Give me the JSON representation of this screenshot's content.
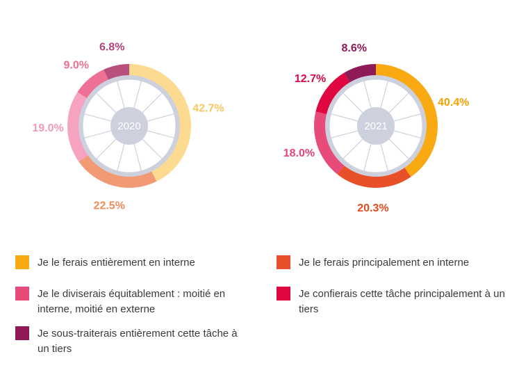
{
  "chart_data": [
    {
      "type": "pie",
      "title": "2020",
      "categories": [
        "Je le ferais entièrement en interne",
        "Je le ferais principalement en interne",
        "Je le diviserais équitablement : moitié en interne, moitié en externe",
        "Je confierais cette tâche principalement à un tiers",
        "Je sous-traiterais entièrement cette tâche à un tiers"
      ],
      "values": [
        42.7,
        22.5,
        19.0,
        9.0,
        6.8
      ],
      "labels": [
        "42.7%",
        "22.5%",
        "19.0%",
        "9.0%",
        "6.8%"
      ],
      "colors": [
        "#FCDB90",
        "#F29A73",
        "#F5A3C0",
        "#EE7094",
        "#B8507D"
      ]
    },
    {
      "type": "pie",
      "title": "2021",
      "categories": [
        "Je le ferais entièrement en interne",
        "Je le ferais principalement en interne",
        "Je le diviserais équitablement : moitié en interne, moitié en externe",
        "Je confierais cette tâche principalement à un tiers",
        "Je sous-traiterais entièrement cette tâche à un tiers"
      ],
      "values": [
        40.4,
        20.3,
        18.0,
        12.7,
        8.6
      ],
      "labels": [
        "40.4%",
        "20.3%",
        "18.0%",
        "12.7%",
        "8.6%"
      ],
      "colors": [
        "#F9A912",
        "#E8502A",
        "#E64B7A",
        "#E0063F",
        "#8E1A58"
      ]
    }
  ],
  "legend": [
    {
      "label": "Je le ferais entièrement en interne",
      "color": "#F9A912"
    },
    {
      "label": "Je le ferais principalement en interne",
      "color": "#E8502A"
    },
    {
      "label": "Je le diviserais équitablement : moitié en interne, moitié en externe",
      "color": "#E64B7A"
    },
    {
      "label": "Je confierais cette tâche principalement à un tiers",
      "color": "#E0063F"
    },
    {
      "label": "Je sous-traiterais entièrement cette tâche à un tiers",
      "color": "#8E1A58"
    }
  ],
  "label_colors": {
    "2020": [
      "#F7C862",
      "#F08A58",
      "#F29BB6",
      "#EC6F92",
      "#B0457A"
    ],
    "2021": [
      "#F4A300",
      "#E04A1F",
      "#E4457A",
      "#DE0A45",
      "#8E1A58"
    ]
  },
  "hub_color": "#CDD0DD",
  "wheel_line_color": "#CDD0DD"
}
